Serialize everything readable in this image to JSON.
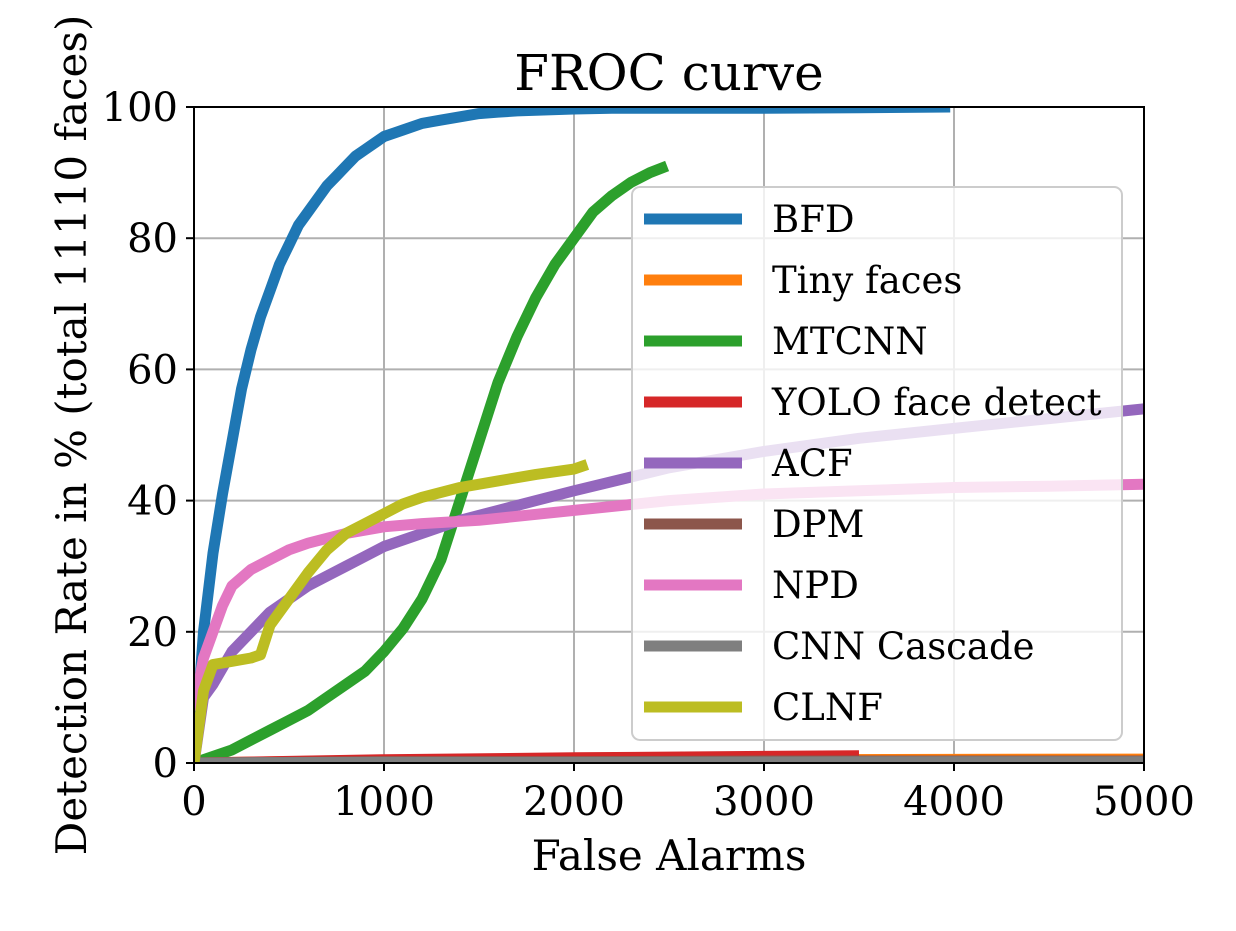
{
  "chart_data": {
    "type": "line",
    "title": "FROC curve",
    "xlabel": "False Alarms",
    "ylabel": "Detection Rate in % (total 11110 faces)",
    "xlim": [
      0,
      5000
    ],
    "ylim": [
      0,
      100
    ],
    "xticks": [
      0,
      1000,
      2000,
      3000,
      4000,
      5000
    ],
    "yticks": [
      0,
      20,
      40,
      60,
      80,
      100
    ],
    "grid": true,
    "legend_position": "right",
    "series": [
      {
        "name": "BFD",
        "color": "#1f77b4",
        "x": [
          0,
          50,
          100,
          150,
          200,
          250,
          300,
          350,
          400,
          450,
          500,
          550,
          600,
          650,
          700,
          750,
          800,
          850,
          900,
          950,
          1000,
          1100,
          1200,
          1300,
          1400,
          1500,
          1600,
          1700,
          1800,
          1900,
          2000,
          2200,
          2500,
          3000,
          3500,
          3980
        ],
        "y": [
          0,
          20,
          32,
          41,
          49,
          57,
          63,
          68,
          72,
          76,
          79,
          82,
          84,
          86,
          88,
          89.5,
          91,
          92.5,
          93.5,
          94.5,
          95.5,
          96.5,
          97.5,
          98,
          98.5,
          99,
          99.2,
          99.4,
          99.5,
          99.6,
          99.7,
          99.8,
          99.8,
          99.8,
          99.9,
          100
        ]
      },
      {
        "name": "Tiny faces",
        "color": "#ff7f0e",
        "x": [
          0,
          1000,
          2000,
          3000,
          4000,
          5000
        ],
        "y": [
          0,
          0.4,
          0.5,
          0.5,
          0.55,
          0.6
        ]
      },
      {
        "name": "MTCNN",
        "color": "#2ca02c",
        "x": [
          0,
          100,
          200,
          300,
          400,
          500,
          600,
          700,
          800,
          900,
          1000,
          1100,
          1200,
          1300,
          1400,
          1500,
          1600,
          1700,
          1800,
          1900,
          2000,
          2100,
          2200,
          2300,
          2400,
          2490
        ],
        "y": [
          0,
          1,
          2,
          3.5,
          5,
          6.5,
          8,
          10,
          12,
          14,
          17,
          20.5,
          25,
          31,
          40,
          49,
          58,
          65,
          71,
          76,
          80,
          84,
          86.5,
          88.5,
          90,
          91
        ]
      },
      {
        "name": "YOLO face detect",
        "color": "#d62728",
        "x": [
          0,
          1000,
          2000,
          3000,
          3500
        ],
        "y": [
          0,
          0.5,
          0.8,
          1.0,
          1.1
        ]
      },
      {
        "name": "ACF",
        "color": "#9467bd",
        "x": [
          0,
          50,
          100,
          200,
          300,
          400,
          500,
          600,
          700,
          800,
          900,
          1000,
          1200,
          1400,
          1600,
          1800,
          2000,
          2500,
          3000,
          3500,
          4000,
          4500,
          5000
        ],
        "y": [
          0,
          10,
          12,
          17,
          20,
          23,
          25,
          27,
          28.5,
          30,
          31.5,
          33,
          35,
          37,
          38.5,
          40,
          41.5,
          45,
          47.5,
          49.5,
          51,
          52.5,
          54
        ]
      },
      {
        "name": "DPM",
        "color": "#8c564b",
        "x": [
          0,
          1000,
          2000,
          3000,
          4000,
          5000
        ],
        "y": [
          0,
          0.2,
          0.2,
          0.3,
          0.3,
          0.3
        ]
      },
      {
        "name": "NPD",
        "color": "#e377c2",
        "x": [
          0,
          50,
          100,
          150,
          200,
          300,
          400,
          500,
          600,
          800,
          1000,
          1200,
          1500,
          2000,
          2500,
          3000,
          3500,
          4000,
          4500,
          5000
        ],
        "y": [
          8,
          16,
          20,
          24,
          27,
          29.5,
          31,
          32.5,
          33.5,
          35,
          36,
          36.5,
          37,
          38.5,
          40,
          41,
          41.5,
          42,
          42.2,
          42.5
        ]
      },
      {
        "name": "CNN Cascade",
        "color": "#7f7f7f",
        "x": [
          0,
          1000,
          2000,
          3000,
          4000,
          5000
        ],
        "y": [
          0,
          0.1,
          0.1,
          0.15,
          0.2,
          0.2
        ]
      },
      {
        "name": "CLNF",
        "color": "#bcbd22",
        "x": [
          0,
          50,
          100,
          200,
          300,
          350,
          400,
          500,
          600,
          700,
          800,
          900,
          1000,
          1100,
          1200,
          1400,
          1600,
          1800,
          2000,
          2070
        ],
        "y": [
          0,
          11,
          15,
          15.5,
          16,
          16.5,
          21,
          25,
          29,
          32.5,
          35,
          36.5,
          38,
          39.5,
          40.5,
          42,
          43,
          44,
          44.8,
          45.5
        ]
      }
    ]
  }
}
